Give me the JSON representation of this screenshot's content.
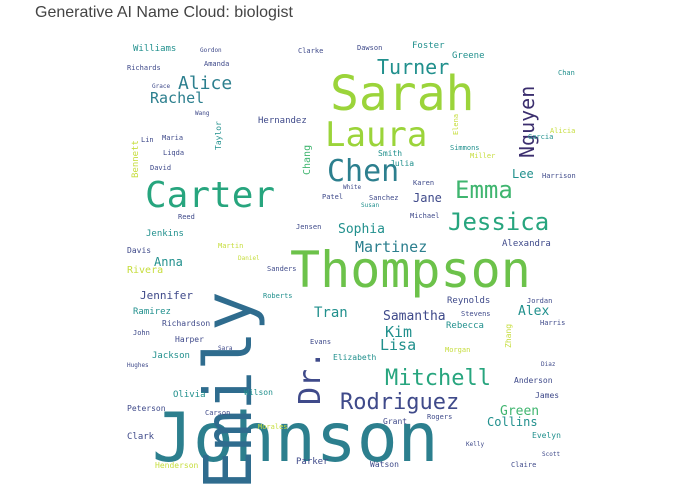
{
  "title": "Generative AI Name Cloud: biologist",
  "palette": {
    "dark_purple": "#3b2e6e",
    "indigo": "#3f4a8a",
    "blue": "#2f6c8e",
    "teal_blue": "#2c7f8e",
    "teal": "#21908d",
    "green_teal": "#27a57e",
    "green": "#3fb56f",
    "light_green": "#6cc24a",
    "lime": "#9bd43a",
    "yellow": "#c6dd3c"
  },
  "words": [
    {
      "text": "Johnson"
    },
    {
      "text": "Emily"
    },
    {
      "text": "Thompson"
    },
    {
      "text": "Sarah"
    },
    {
      "text": "Carter"
    },
    {
      "text": "Laura"
    },
    {
      "text": "Chen"
    },
    {
      "text": "Dr."
    },
    {
      "text": "Emma"
    },
    {
      "text": "Jessica"
    },
    {
      "text": "Mitchell"
    },
    {
      "text": "Rodriguez"
    },
    {
      "text": "Turner"
    },
    {
      "text": "Nguyen"
    },
    {
      "text": "Alice"
    },
    {
      "text": "Rachel"
    },
    {
      "text": "Martinez"
    },
    {
      "text": "Sophia"
    },
    {
      "text": "Kim"
    },
    {
      "text": "Lisa"
    },
    {
      "text": "Samantha"
    },
    {
      "text": "Tran"
    },
    {
      "text": "Alex"
    },
    {
      "text": "Green"
    },
    {
      "text": "Collins"
    },
    {
      "text": "Anna"
    },
    {
      "text": "Jennifer"
    },
    {
      "text": "Lee"
    },
    {
      "text": "Jane"
    },
    {
      "text": "Chang"
    },
    {
      "text": "Williams"
    },
    {
      "text": "Richards"
    },
    {
      "text": "Hernandez"
    },
    {
      "text": "Wang"
    },
    {
      "text": "Lin"
    },
    {
      "text": "Maria"
    },
    {
      "text": "David"
    },
    {
      "text": "Bennett"
    },
    {
      "text": "Liqda"
    },
    {
      "text": "Taylor"
    },
    {
      "text": "Smith"
    },
    {
      "text": "Julia"
    },
    {
      "text": "Karen"
    },
    {
      "text": "Simmons"
    },
    {
      "text": "Miller"
    },
    {
      "text": "Garcia"
    },
    {
      "text": "Alicia"
    },
    {
      "text": "Foster"
    },
    {
      "text": "Greene"
    },
    {
      "text": "Dawson"
    },
    {
      "text": "Clarke"
    },
    {
      "text": "Elena"
    },
    {
      "text": "Jenkins"
    },
    {
      "text": "Davis"
    },
    {
      "text": "Rivera"
    },
    {
      "text": "Ramirez"
    },
    {
      "text": "Richardson"
    },
    {
      "text": "John"
    },
    {
      "text": "Harper"
    },
    {
      "text": "Jackson"
    },
    {
      "text": "Hughes"
    },
    {
      "text": "Olivia"
    },
    {
      "text": "Peterson"
    },
    {
      "text": "Clark"
    },
    {
      "text": "Henderson"
    },
    {
      "text": "Carson"
    },
    {
      "text": "Parker"
    },
    {
      "text": "Watson"
    },
    {
      "text": "Grant"
    },
    {
      "text": "Rogers"
    },
    {
      "text": "James"
    },
    {
      "text": "Anderson"
    },
    {
      "text": "Evelyn"
    },
    {
      "text": "Claire"
    },
    {
      "text": "Rebecca"
    },
    {
      "text": "Reynolds"
    },
    {
      "text": "Stevens"
    },
    {
      "text": "Harris"
    },
    {
      "text": "Jordan"
    },
    {
      "text": "Zhang"
    },
    {
      "text": "Morgan"
    },
    {
      "text": "Elizabeth"
    },
    {
      "text": "Evans"
    },
    {
      "text": "Michael"
    },
    {
      "text": "Jensen"
    },
    {
      "text": "Sanders"
    },
    {
      "text": "Roberts"
    },
    {
      "text": "Sanchez"
    },
    {
      "text": "Patel"
    },
    {
      "text": "White"
    },
    {
      "text": "Alexandra"
    },
    {
      "text": "Wilson"
    },
    {
      "text": "Morales"
    },
    {
      "text": "Harrison"
    },
    {
      "text": "Chan"
    },
    {
      "text": "Reed"
    },
    {
      "text": "Martin"
    },
    {
      "text": "Daniel"
    },
    {
      "text": "Sara"
    },
    {
      "text": "Diaz"
    },
    {
      "text": "Grace"
    },
    {
      "text": "Amanda"
    },
    {
      "text": "Gordon"
    },
    {
      "text": "Scott"
    },
    {
      "text": "Kelly"
    },
    {
      "text": "Susan"
    }
  ]
}
